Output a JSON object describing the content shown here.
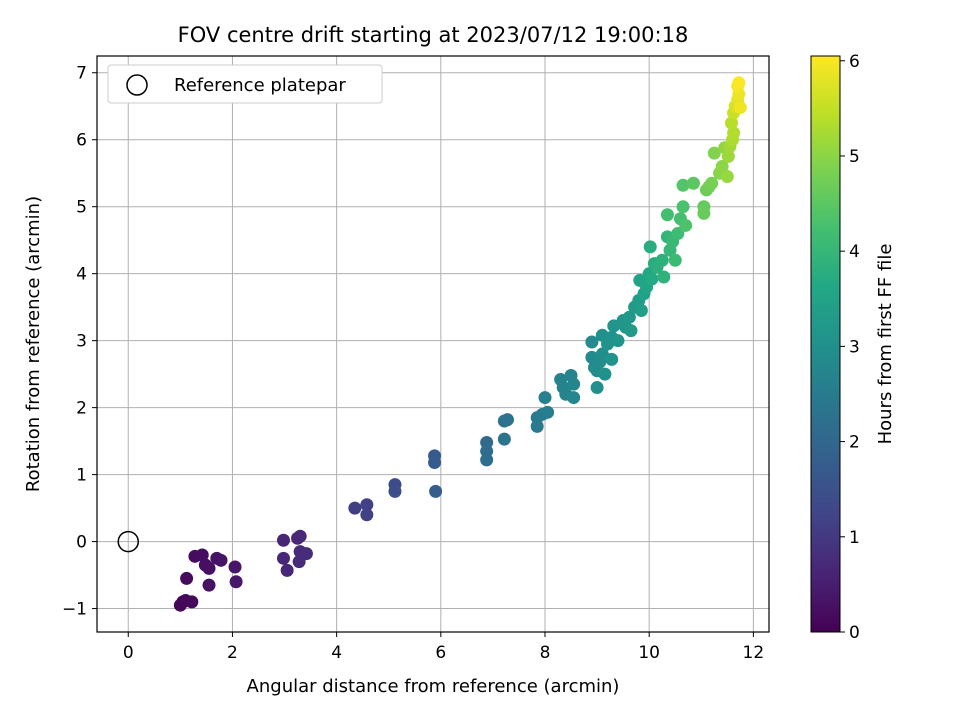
{
  "chart_data": {
    "type": "scatter",
    "title": "FOV centre drift starting at 2023/07/12 19:00:18",
    "xlabel": "Angular distance from reference (arcmin)",
    "ylabel": "Rotation from reference (arcmin)",
    "xlim": [
      -0.6,
      12.3
    ],
    "ylim": [
      -1.35,
      7.25
    ],
    "xticks": [
      "0",
      "2",
      "4",
      "6",
      "8",
      "10",
      "12"
    ],
    "yticks": [
      "−1",
      "0",
      "1",
      "2",
      "3",
      "4",
      "5",
      "6",
      "7"
    ],
    "grid": true,
    "legend": {
      "placement": "top-left",
      "entries": [
        "Reference platepar"
      ]
    },
    "reference_point": {
      "x": 0,
      "y": 0
    },
    "colorbar": {
      "label": "Hours from first FF file",
      "range": [
        0,
        6.05
      ],
      "ticks": [
        "0",
        "1",
        "2",
        "3",
        "4",
        "5",
        "6"
      ],
      "colormap": "viridis"
    },
    "points": [
      {
        "x": 1.05,
        "y": -0.9,
        "t": 0.05
      },
      {
        "x": 1.0,
        "y": -0.95,
        "t": 0.08
      },
      {
        "x": 1.1,
        "y": -0.88,
        "t": 0.1
      },
      {
        "x": 1.22,
        "y": -0.9,
        "t": 0.12
      },
      {
        "x": 1.12,
        "y": -0.55,
        "t": 0.15
      },
      {
        "x": 1.28,
        "y": -0.22,
        "t": 0.18
      },
      {
        "x": 1.42,
        "y": -0.2,
        "t": 0.2
      },
      {
        "x": 1.48,
        "y": -0.35,
        "t": 0.22
      },
      {
        "x": 1.55,
        "y": -0.4,
        "t": 0.25
      },
      {
        "x": 1.55,
        "y": -0.65,
        "t": 0.28
      },
      {
        "x": 1.7,
        "y": -0.25,
        "t": 0.3
      },
      {
        "x": 1.78,
        "y": -0.28,
        "t": 0.33
      },
      {
        "x": 2.05,
        "y": -0.38,
        "t": 0.36
      },
      {
        "x": 2.07,
        "y": -0.6,
        "t": 0.4
      },
      {
        "x": 2.98,
        "y": 0.02,
        "t": 0.62
      },
      {
        "x": 2.98,
        "y": -0.25,
        "t": 0.64
      },
      {
        "x": 3.05,
        "y": -0.43,
        "t": 0.66
      },
      {
        "x": 3.25,
        "y": 0.05,
        "t": 0.68
      },
      {
        "x": 3.3,
        "y": 0.08,
        "t": 0.7
      },
      {
        "x": 3.3,
        "y": -0.15,
        "t": 0.72
      },
      {
        "x": 3.28,
        "y": -0.3,
        "t": 0.74
      },
      {
        "x": 3.42,
        "y": -0.18,
        "t": 0.76
      },
      {
        "x": 4.35,
        "y": 0.5,
        "t": 1.1
      },
      {
        "x": 4.58,
        "y": 0.55,
        "t": 1.15
      },
      {
        "x": 4.58,
        "y": 0.4,
        "t": 1.18
      },
      {
        "x": 5.12,
        "y": 0.85,
        "t": 1.4
      },
      {
        "x": 5.12,
        "y": 0.75,
        "t": 1.43
      },
      {
        "x": 5.88,
        "y": 1.28,
        "t": 1.7
      },
      {
        "x": 5.88,
        "y": 1.18,
        "t": 1.73
      },
      {
        "x": 5.9,
        "y": 0.75,
        "t": 1.76
      },
      {
        "x": 6.88,
        "y": 1.48,
        "t": 2.1
      },
      {
        "x": 6.88,
        "y": 1.35,
        "t": 2.13
      },
      {
        "x": 6.88,
        "y": 1.22,
        "t": 2.16
      },
      {
        "x": 7.22,
        "y": 1.8,
        "t": 2.25
      },
      {
        "x": 7.28,
        "y": 1.82,
        "t": 2.28
      },
      {
        "x": 7.22,
        "y": 1.53,
        "t": 2.31
      },
      {
        "x": 7.85,
        "y": 1.85,
        "t": 2.45
      },
      {
        "x": 7.85,
        "y": 1.72,
        "t": 2.48
      },
      {
        "x": 7.95,
        "y": 1.9,
        "t": 2.52
      },
      {
        "x": 8.05,
        "y": 1.93,
        "t": 2.55
      },
      {
        "x": 8.0,
        "y": 2.15,
        "t": 2.58
      },
      {
        "x": 8.3,
        "y": 2.42,
        "t": 2.65
      },
      {
        "x": 8.35,
        "y": 2.3,
        "t": 2.68
      },
      {
        "x": 8.4,
        "y": 2.2,
        "t": 2.7
      },
      {
        "x": 8.5,
        "y": 2.48,
        "t": 2.72
      },
      {
        "x": 8.55,
        "y": 2.35,
        "t": 2.74
      },
      {
        "x": 8.55,
        "y": 2.15,
        "t": 2.76
      },
      {
        "x": 8.9,
        "y": 2.98,
        "t": 2.85
      },
      {
        "x": 8.9,
        "y": 2.75,
        "t": 2.87
      },
      {
        "x": 8.95,
        "y": 2.6,
        "t": 2.89
      },
      {
        "x": 9.0,
        "y": 2.55,
        "t": 2.91
      },
      {
        "x": 9.05,
        "y": 2.68,
        "t": 2.93
      },
      {
        "x": 9.1,
        "y": 2.8,
        "t": 2.95
      },
      {
        "x": 9.0,
        "y": 2.3,
        "t": 2.97
      },
      {
        "x": 9.1,
        "y": 3.08,
        "t": 3.0
      },
      {
        "x": 9.15,
        "y": 2.5,
        "t": 3.02
      },
      {
        "x": 9.2,
        "y": 2.95,
        "t": 3.04
      },
      {
        "x": 9.28,
        "y": 3.05,
        "t": 3.06
      },
      {
        "x": 9.28,
        "y": 2.72,
        "t": 3.08
      },
      {
        "x": 9.32,
        "y": 3.22,
        "t": 3.1
      },
      {
        "x": 9.4,
        "y": 3.0,
        "t": 3.12
      },
      {
        "x": 9.5,
        "y": 3.3,
        "t": 3.15
      },
      {
        "x": 9.55,
        "y": 3.2,
        "t": 3.18
      },
      {
        "x": 9.62,
        "y": 3.35,
        "t": 3.22
      },
      {
        "x": 9.65,
        "y": 3.15,
        "t": 3.25
      },
      {
        "x": 9.72,
        "y": 3.5,
        "t": 3.3
      },
      {
        "x": 9.8,
        "y": 3.6,
        "t": 3.35
      },
      {
        "x": 9.85,
        "y": 3.45,
        "t": 3.4
      },
      {
        "x": 9.9,
        "y": 3.7,
        "t": 3.45
      },
      {
        "x": 9.82,
        "y": 3.9,
        "t": 3.5
      },
      {
        "x": 9.95,
        "y": 3.8,
        "t": 3.55
      },
      {
        "x": 10.0,
        "y": 4.0,
        "t": 3.6
      },
      {
        "x": 10.05,
        "y": 3.92,
        "t": 3.65
      },
      {
        "x": 10.1,
        "y": 4.15,
        "t": 3.7
      },
      {
        "x": 10.02,
        "y": 4.4,
        "t": 3.75
      },
      {
        "x": 10.15,
        "y": 4.1,
        "t": 3.8
      },
      {
        "x": 10.25,
        "y": 4.2,
        "t": 3.85
      },
      {
        "x": 10.28,
        "y": 3.95,
        "t": 3.9
      },
      {
        "x": 10.35,
        "y": 4.55,
        "t": 3.95
      },
      {
        "x": 10.4,
        "y": 4.35,
        "t": 4.0
      },
      {
        "x": 10.45,
        "y": 4.48,
        "t": 4.05
      },
      {
        "x": 10.5,
        "y": 4.2,
        "t": 4.1
      },
      {
        "x": 10.55,
        "y": 4.6,
        "t": 4.15
      },
      {
        "x": 10.35,
        "y": 4.88,
        "t": 4.2
      },
      {
        "x": 10.6,
        "y": 4.82,
        "t": 4.25
      },
      {
        "x": 10.65,
        "y": 5.0,
        "t": 4.3
      },
      {
        "x": 10.7,
        "y": 4.72,
        "t": 4.35
      },
      {
        "x": 10.65,
        "y": 5.32,
        "t": 4.4
      },
      {
        "x": 10.85,
        "y": 5.35,
        "t": 4.5
      },
      {
        "x": 11.05,
        "y": 5.0,
        "t": 4.6
      },
      {
        "x": 11.05,
        "y": 4.9,
        "t": 4.65
      },
      {
        "x": 11.1,
        "y": 5.25,
        "t": 4.7
      },
      {
        "x": 11.15,
        "y": 5.3,
        "t": 4.75
      },
      {
        "x": 11.2,
        "y": 5.35,
        "t": 4.8
      },
      {
        "x": 11.25,
        "y": 5.8,
        "t": 4.9
      },
      {
        "x": 11.35,
        "y": 5.5,
        "t": 4.95
      },
      {
        "x": 11.4,
        "y": 5.6,
        "t": 5.0
      },
      {
        "x": 11.45,
        "y": 5.88,
        "t": 5.05
      },
      {
        "x": 11.5,
        "y": 5.45,
        "t": 5.1
      },
      {
        "x": 11.52,
        "y": 5.75,
        "t": 5.15
      },
      {
        "x": 11.55,
        "y": 5.9,
        "t": 5.2
      },
      {
        "x": 11.6,
        "y": 6.0,
        "t": 5.3
      },
      {
        "x": 11.62,
        "y": 6.1,
        "t": 5.35
      },
      {
        "x": 11.58,
        "y": 6.25,
        "t": 5.4
      },
      {
        "x": 11.62,
        "y": 6.4,
        "t": 5.55
      },
      {
        "x": 11.65,
        "y": 6.5,
        "t": 5.7
      },
      {
        "x": 11.7,
        "y": 6.6,
        "t": 5.8
      },
      {
        "x": 11.72,
        "y": 6.68,
        "t": 5.88
      },
      {
        "x": 11.75,
        "y": 6.48,
        "t": 5.92
      },
      {
        "x": 11.7,
        "y": 6.8,
        "t": 5.98
      },
      {
        "x": 11.72,
        "y": 6.85,
        "t": 6.02
      }
    ]
  }
}
